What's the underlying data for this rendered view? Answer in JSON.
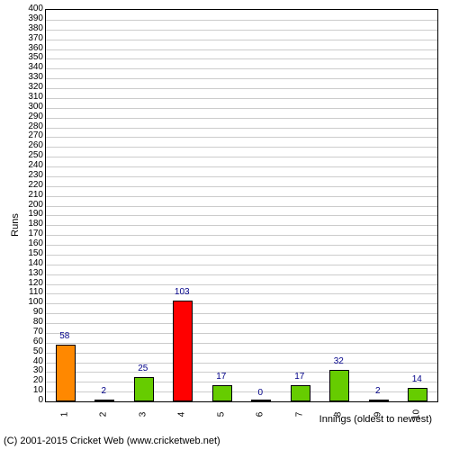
{
  "chart": {
    "type": "bar",
    "ylabel": "Runs",
    "xlabel": "Innings (oldest to newest)",
    "ylim": [
      0,
      400
    ],
    "ytick_step": 10,
    "categories": [
      "1",
      "2",
      "3",
      "4",
      "5",
      "6",
      "7",
      "8",
      "9",
      "10"
    ],
    "values": [
      58,
      2,
      25,
      103,
      17,
      0,
      17,
      32,
      2,
      14
    ],
    "bar_colors": [
      "#ff8800",
      "#66cc00",
      "#66cc00",
      "#ff0000",
      "#66cc00",
      "#66cc00",
      "#66cc00",
      "#66cc00",
      "#66cc00",
      "#66cc00"
    ],
    "label_color": "#000088",
    "background_color": "#ffffff",
    "grid_color": "#cccccc",
    "axis_color": "#000000",
    "bar_width_ratio": 0.5,
    "title_fontsize": 11,
    "tick_fontsize": 10,
    "label_fontsize": 10
  },
  "copyright": "(C) 2001-2015 Cricket Web (www.cricketweb.net)"
}
